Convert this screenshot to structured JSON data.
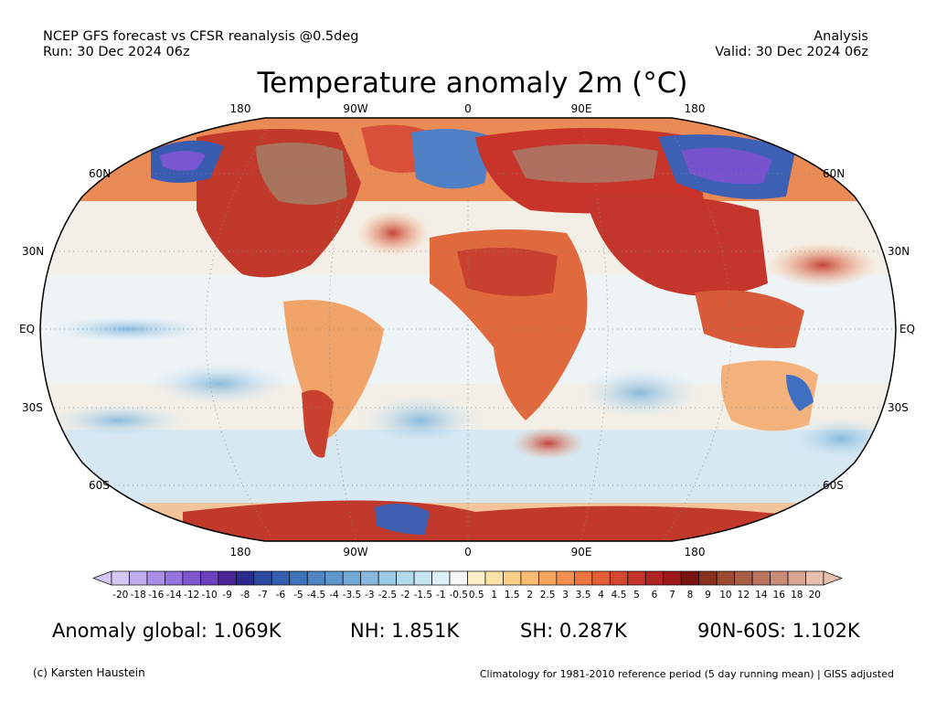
{
  "header": {
    "left_line1": "NCEP GFS forecast vs CFSR reanalysis @0.5deg",
    "left_line2": "Run: 30 Dec 2024 06z",
    "right_line1": "Analysis",
    "right_line2": "Valid: 30 Dec 2024 06z"
  },
  "map": {
    "title": "Temperature anomaly 2m (°C)",
    "lon_ticks": [
      "180",
      "90W",
      "0",
      "90E",
      "180"
    ],
    "lat_ticks": [
      "60N",
      "30N",
      "EQ",
      "30S",
      "60S"
    ]
  },
  "colorbar": {
    "labels": [
      "-20",
      "-18",
      "-16",
      "-14",
      "-12",
      "-10",
      "-9",
      "-8",
      "-7",
      "-6",
      "-5",
      "-4.5",
      "-4",
      "-3.5",
      "-3",
      "-2.5",
      "-2",
      "-1.5",
      "-1",
      "-0.5",
      "0.5",
      "1",
      "1.5",
      "2",
      "2.5",
      "3",
      "3.5",
      "4",
      "4.5",
      "5",
      "6",
      "7",
      "8",
      "9",
      "10",
      "12",
      "14",
      "16",
      "18",
      "20"
    ],
    "colors": [
      "#d4c8f2",
      "#bfacee",
      "#a98de6",
      "#9474dc",
      "#7d55cc",
      "#6c3fbe",
      "#4a2696",
      "#2c2a8c",
      "#2e4a9e",
      "#345fae",
      "#3f74bb",
      "#4f85c3",
      "#5f96cb",
      "#74a8d5",
      "#88b8de",
      "#9ccbe6",
      "#b3dbee",
      "#c6e6f3",
      "#ddf0f8",
      "#f7f7f7",
      "#fbf0c8",
      "#fbe2a6",
      "#f9d08a",
      "#f8bd72",
      "#f5a65d",
      "#f08f4e",
      "#ea7642",
      "#e05e38",
      "#d44830",
      "#c43428",
      "#b02424",
      "#9c1a1a",
      "#7a1212",
      "#8a3020",
      "#9c4a32",
      "#a85e46",
      "#b8745e",
      "#c88c78",
      "#d8a692",
      "#e8c0ae"
    ]
  },
  "stats": {
    "global": "Anomaly global: 1.069K",
    "nh": "NH: 1.851K",
    "sh": "SH: 0.287K",
    "arctic": "90N-60S: 1.102K"
  },
  "footer": {
    "credit": "(c) Karsten Haustein",
    "climatology": "Climatology for 1981-2010 reference period (5 day running mean) | GISS adjusted"
  }
}
